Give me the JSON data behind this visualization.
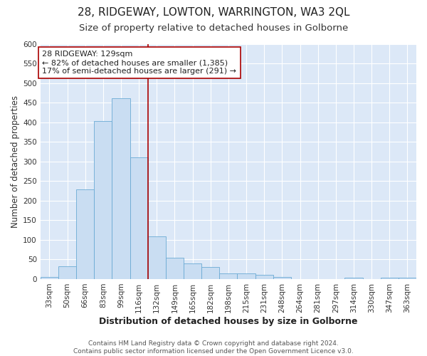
{
  "title": "28, RIDGEWAY, LOWTON, WARRINGTON, WA3 2QL",
  "subtitle": "Size of property relative to detached houses in Golborne",
  "xlabel": "Distribution of detached houses by size in Golborne",
  "ylabel": "Number of detached properties",
  "categories": [
    "33sqm",
    "50sqm",
    "66sqm",
    "83sqm",
    "99sqm",
    "116sqm",
    "132sqm",
    "149sqm",
    "165sqm",
    "182sqm",
    "198sqm",
    "215sqm",
    "231sqm",
    "248sqm",
    "264sqm",
    "281sqm",
    "297sqm",
    "314sqm",
    "330sqm",
    "347sqm",
    "363sqm"
  ],
  "values": [
    5,
    32,
    228,
    403,
    462,
    310,
    108,
    54,
    40,
    30,
    14,
    14,
    10,
    5,
    0,
    0,
    0,
    4,
    0,
    4,
    4
  ],
  "bar_color": "#c9ddf2",
  "bar_edge_color": "#6aaad4",
  "background_color": "#dce8f7",
  "fig_background_color": "#ffffff",
  "grid_color": "#ffffff",
  "vline_x": 6,
  "vline_color": "#aa0000",
  "annotation_line1": "28 RIDGEWAY: 129sqm",
  "annotation_line2": "← 82% of detached houses are smaller (1,385)",
  "annotation_line3": "17% of semi-detached houses are larger (291) →",
  "annotation_box_color": "#ffffff",
  "annotation_box_edge_color": "#aa0000",
  "footer_line1": "Contains HM Land Registry data © Crown copyright and database right 2024.",
  "footer_line2": "Contains public sector information licensed under the Open Government Licence v3.0.",
  "ylim": [
    0,
    600
  ],
  "yticks": [
    0,
    50,
    100,
    150,
    200,
    250,
    300,
    350,
    400,
    450,
    500,
    550,
    600
  ],
  "title_fontsize": 11,
  "subtitle_fontsize": 9.5,
  "xlabel_fontsize": 9,
  "ylabel_fontsize": 8.5,
  "tick_fontsize": 7.5,
  "annotation_fontsize": 8,
  "footer_fontsize": 6.5
}
